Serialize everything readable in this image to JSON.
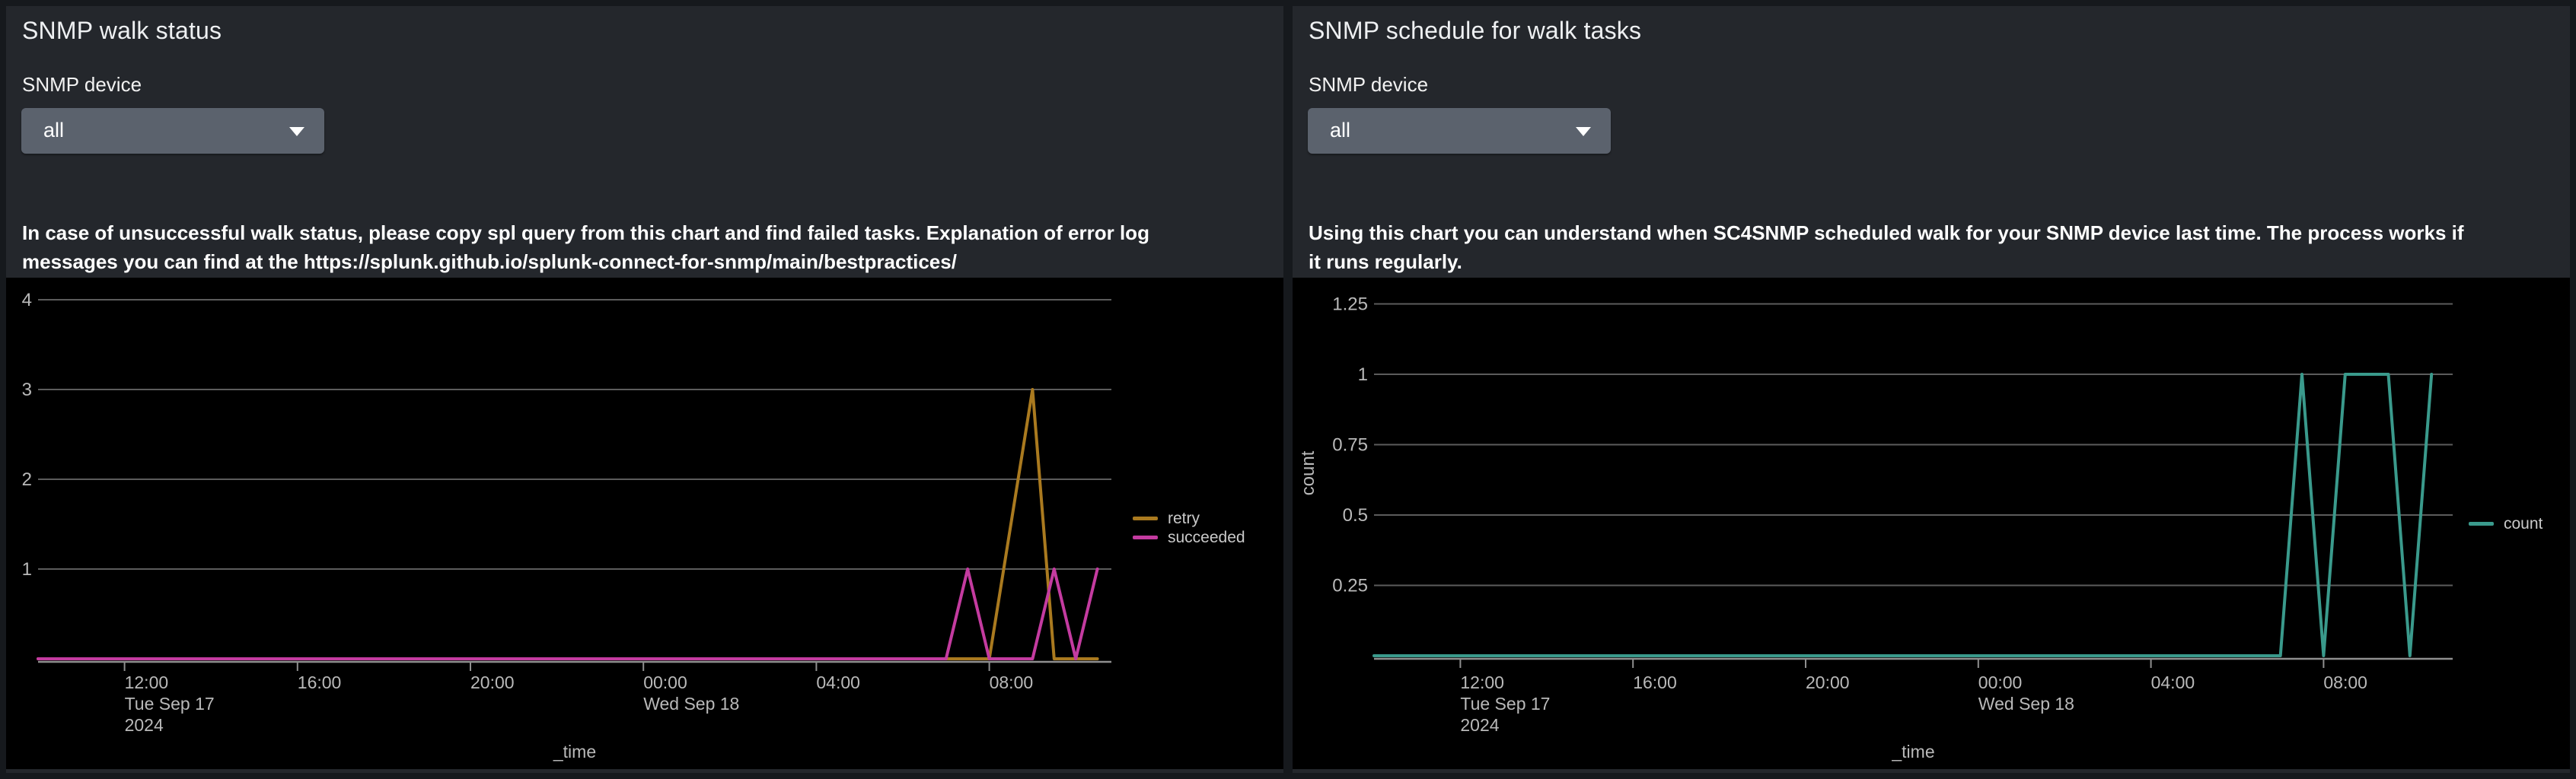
{
  "colors": {
    "page_bg": "#16191d",
    "panel_bg": "#24272c",
    "chart_bg": "#000000",
    "dropdown_bg": "#5b626d",
    "title_text": "#eef0f2",
    "body_text": "#ffffff",
    "gridline": "#5c5c5c",
    "axis_line": "#8f8f8f",
    "tick_label": "#b9b9b9",
    "legend_text": "#c9c9c9",
    "series_retry": "#aa7a1f",
    "series_succeeded": "#c43ba0",
    "series_count": "#3a9a8c"
  },
  "panels": [
    {
      "title": "SNMP walk status",
      "device_label": "SNMP device",
      "device_value": "all",
      "dropdown_icon": "chevron-down-icon",
      "description": "In case of unsuccessful walk status, please copy spl query from this chart and find failed tasks. Explanation of error log\nmessages you can find at the https://splunk.github.io/splunk-connect-for-snmp/main/bestpractices/"
    },
    {
      "title": "SNMP schedule for walk tasks",
      "device_label": "SNMP device",
      "device_value": "all",
      "dropdown_icon": "chevron-down-icon",
      "description": "Using this chart you can understand when SC4SNMP scheduled walk for your SNMP device last time. The process works if\nit runs regularly."
    }
  ],
  "chart_data": [
    {
      "type": "line",
      "panel": "SNMP walk status",
      "xlabel": "_time",
      "ylabel": "",
      "x_unit": "hours since Tue Sep 17 2024 10:00",
      "xlim": [
        0,
        24.8
      ],
      "ylim": [
        0,
        4.3
      ],
      "grid": true,
      "legend_position": "right",
      "yticks": [
        {
          "v": 1,
          "label": "1"
        },
        {
          "v": 2,
          "label": "2"
        },
        {
          "v": 3,
          "label": "3"
        },
        {
          "v": 4,
          "label": "4"
        }
      ],
      "xticks": [
        {
          "t": 2,
          "label": "12:00",
          "sub": [
            "Tue Sep 17",
            "2024"
          ]
        },
        {
          "t": 6,
          "label": "16:00",
          "sub": []
        },
        {
          "t": 10,
          "label": "20:00",
          "sub": []
        },
        {
          "t": 14,
          "label": "00:00",
          "sub": [
            "Wed Sep 18"
          ]
        },
        {
          "t": 18,
          "label": "04:00",
          "sub": []
        },
        {
          "t": 22,
          "label": "08:00",
          "sub": []
        }
      ],
      "series": [
        {
          "name": "retry",
          "color": "#aa7a1f",
          "points": [
            [
              0,
              0
            ],
            [
              22,
              0
            ],
            [
              23,
              3
            ],
            [
              23.5,
              0
            ],
            [
              24.5,
              0
            ]
          ]
        },
        {
          "name": "succeeded",
          "color": "#c43ba0",
          "points": [
            [
              0,
              0
            ],
            [
              21,
              0
            ],
            [
              21.5,
              1
            ],
            [
              22,
              0
            ],
            [
              23,
              0
            ],
            [
              23.5,
              1
            ],
            [
              24,
              0
            ],
            [
              24.5,
              1
            ]
          ]
        }
      ]
    },
    {
      "type": "line",
      "panel": "SNMP schedule for walk tasks",
      "xlabel": "_time",
      "ylabel": "count",
      "x_unit": "hours since Tue Sep 17 2024 10:00",
      "xlim": [
        0,
        25
      ],
      "ylim": [
        0,
        1.35
      ],
      "grid": true,
      "legend_position": "right",
      "yticks": [
        {
          "v": 0.25,
          "label": "0.25"
        },
        {
          "v": 0.5,
          "label": "0.5"
        },
        {
          "v": 0.75,
          "label": "0.75"
        },
        {
          "v": 1,
          "label": "1"
        },
        {
          "v": 1.25,
          "label": "1.25"
        }
      ],
      "xticks": [
        {
          "t": 2,
          "label": "12:00",
          "sub": [
            "Tue Sep 17",
            "2024"
          ]
        },
        {
          "t": 6,
          "label": "16:00",
          "sub": []
        },
        {
          "t": 10,
          "label": "20:00",
          "sub": []
        },
        {
          "t": 14,
          "label": "00:00",
          "sub": [
            "Wed Sep 18"
          ]
        },
        {
          "t": 18,
          "label": "04:00",
          "sub": []
        },
        {
          "t": 22,
          "label": "08:00",
          "sub": []
        }
      ],
      "series": [
        {
          "name": "count",
          "color": "#3a9a8c",
          "points": [
            [
              0,
              0
            ],
            [
              21,
              0
            ],
            [
              21.5,
              1
            ],
            [
              22,
              0
            ],
            [
              22.5,
              1
            ],
            [
              23.5,
              1
            ],
            [
              24,
              0
            ],
            [
              24.5,
              1
            ]
          ]
        }
      ]
    }
  ]
}
